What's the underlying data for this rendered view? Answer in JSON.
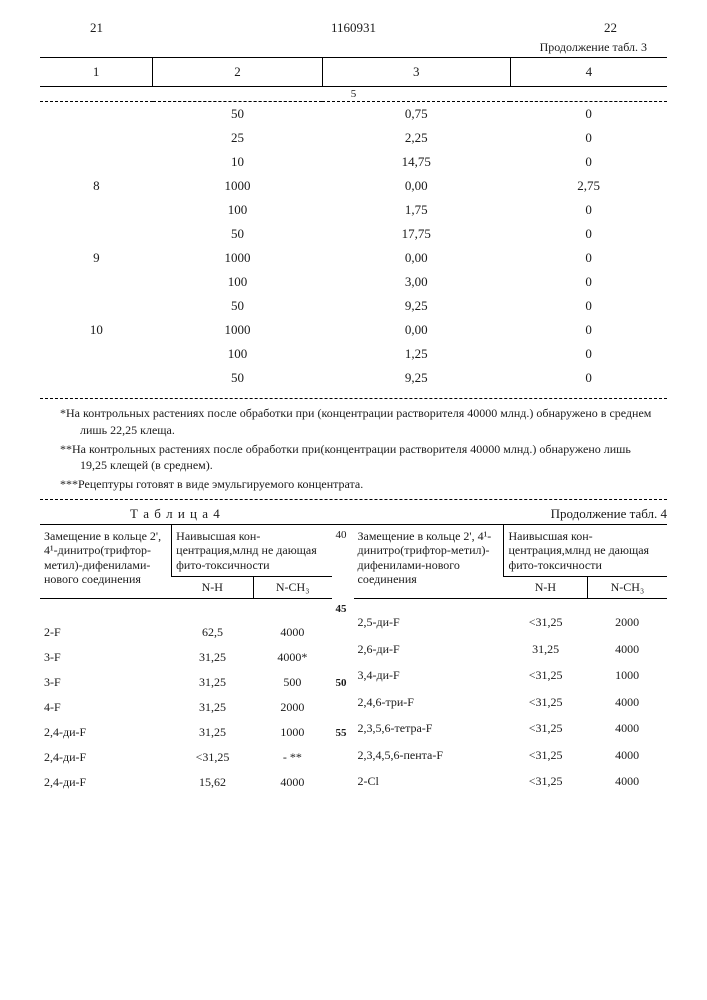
{
  "header": {
    "page_left": "21",
    "doc_number": "1160931",
    "page_right": "22",
    "cont3": "Продолжение табл. 3"
  },
  "table3": {
    "cols": [
      "1",
      "2",
      "3",
      "4"
    ],
    "sub": "5",
    "rows": [
      [
        "",
        "50",
        "0,75",
        "0"
      ],
      [
        "",
        "25",
        "2,25",
        "0"
      ],
      [
        "",
        "10",
        "14,75",
        "0"
      ],
      [
        "8",
        "1000",
        "0,00",
        "2,75"
      ],
      [
        "",
        "100",
        "1,75",
        "0"
      ],
      [
        "",
        "50",
        "17,75",
        "0"
      ],
      [
        "9",
        "1000",
        "0,00",
        "0"
      ],
      [
        "",
        "100",
        "3,00",
        "0"
      ],
      [
        "",
        "50",
        "9,25",
        "0"
      ],
      [
        "10",
        "1000",
        "0,00",
        "0"
      ],
      [
        "",
        "100",
        "1,25",
        "0"
      ],
      [
        "",
        "50",
        "9,25",
        "0"
      ]
    ]
  },
  "footnotes": {
    "f1": "*На контрольных растениях после обработки при (концентрации растворителя 40000 млнд.) обнаружено в среднем лишь 22,25 клеща.",
    "f2": "**На контрольных растениях после обработки при(концентрации растворителя 40000 млнд.) обнаружено лишь 19,25 клещей (в среднем).",
    "f3": "***Рецептуры готовят в виде эмульгируемого концентрата."
  },
  "table4": {
    "label": "Т а б л и ц а  4",
    "cont": "Продолжение табл. 4",
    "h1": "Замещение в кольце 2', 4¹-динитро(трифтор-метил)-дифенилами-нового соединения",
    "h2": "Наивысшая кон-центрация,млнд не дающая фито-токсичности",
    "sub1": "N-H",
    "sub2": "N-CH₃",
    "lines": {
      "l40": "40",
      "l45": "45",
      "l50": "50",
      "l55": "55"
    },
    "left_rows": [
      [
        "2-F",
        "62,5",
        "4000",
        ""
      ],
      [
        "3-F",
        "31,25",
        "4000*",
        ""
      ],
      [
        "3-F",
        "31,25",
        "500",
        "50"
      ],
      [
        "4-F",
        "31,25",
        "2000",
        ""
      ],
      [
        "2,4-ди-F",
        "31,25",
        "1000",
        "55"
      ],
      [
        "2,4-ди-F",
        "<31,25",
        "- **",
        ""
      ],
      [
        "2,4-ди-F",
        "15,62",
        "4000",
        ""
      ]
    ],
    "right_rows": [
      [
        "2,5-ди-F",
        "<31,25",
        "2000"
      ],
      [
        "2,6-ди-F",
        "31,25",
        "4000"
      ],
      [
        "3,4-ди-F",
        "<31,25",
        "1000"
      ],
      [
        "2,4,6-три-F",
        "<31,25",
        "4000"
      ],
      [
        "2,3,5,6-тетра-F",
        "<31,25",
        "4000"
      ],
      [
        "2,3,4,5,6-пента-F",
        "<31,25",
        "4000"
      ],
      [
        "2-Cl",
        "<31,25",
        "4000"
      ]
    ]
  }
}
